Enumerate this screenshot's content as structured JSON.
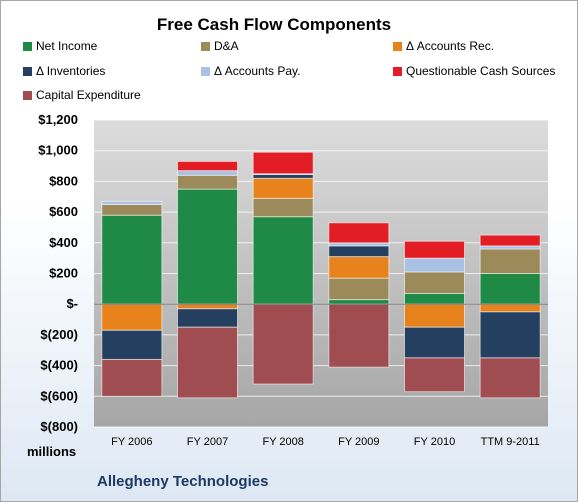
{
  "chart_data": {
    "type": "bar",
    "stacked": true,
    "title": "Free Cash Flow Components",
    "units_label": "millions",
    "company": "Allegheny Technologies",
    "categories": [
      "FY 2006",
      "FY 2007",
      "FY 2008",
      "FY 2009",
      "FY 2010",
      "TTM 9-2011"
    ],
    "ylim": [
      -800,
      1200
    ],
    "yticks": [
      -800,
      -600,
      -400,
      -200,
      0,
      200,
      400,
      600,
      800,
      1000,
      1200
    ],
    "ytick_labels": [
      "$(800)",
      "$(600)",
      "$(400)",
      "$(200)",
      "$-",
      "$200",
      "$400",
      "$600",
      "$800",
      "$1,000",
      "$1,200"
    ],
    "grid": true,
    "legend_position": "top",
    "series": [
      {
        "name": "Net Income",
        "color": "#1e8a45",
        "values": [
          580,
          750,
          570,
          30,
          70,
          200
        ]
      },
      {
        "name": "D&A",
        "color": "#9c8a5a",
        "values": [
          70,
          90,
          120,
          140,
          140,
          160
        ]
      },
      {
        "name": "Δ Accounts Rec.",
        "color": "#e8821c",
        "values": [
          -170,
          -30,
          130,
          140,
          -150,
          -50
        ]
      },
      {
        "name": "Δ Inventories",
        "color": "#243f60",
        "values": [
          -190,
          -120,
          25,
          70,
          -200,
          -300
        ]
      },
      {
        "name": "Δ Accounts Pay.",
        "color": "#a9c1e2",
        "values": [
          20,
          30,
          5,
          20,
          90,
          20
        ]
      },
      {
        "name": "Questionable Cash Sources",
        "color": "#e21d24",
        "values": [
          0,
          60,
          140,
          130,
          110,
          70
        ]
      },
      {
        "name": "Capital Expenditure",
        "color": "#a04d52",
        "values": [
          -240,
          -460,
          -520,
          -410,
          -220,
          -260
        ]
      }
    ]
  }
}
